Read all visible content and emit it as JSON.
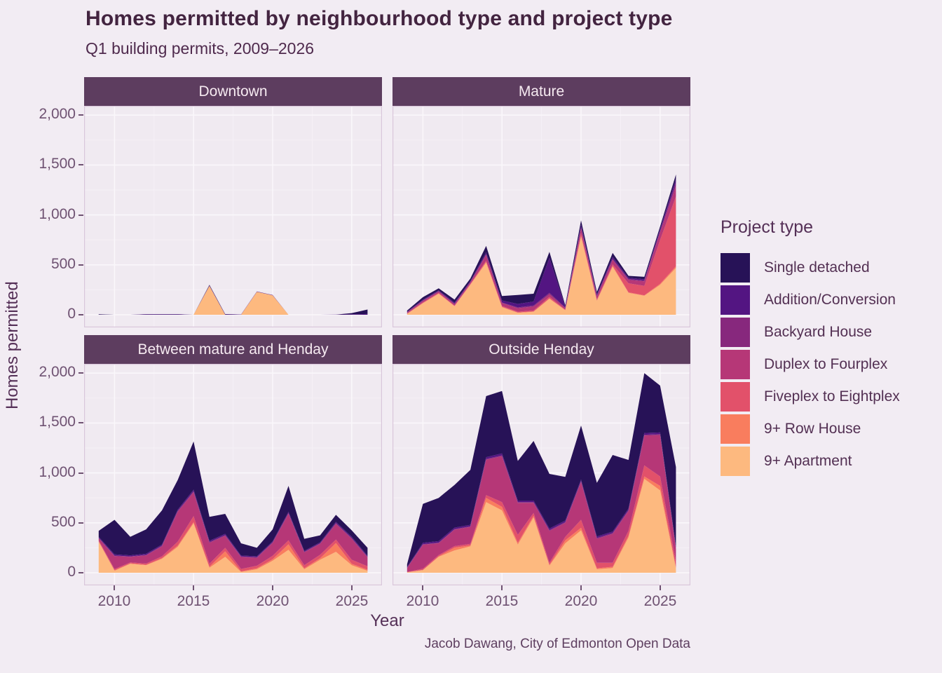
{
  "title": "Homes permitted by neighbourhood type and project type",
  "subtitle": "Q1 building permits, 2009–2026",
  "caption": "Jacob Dawang, City of Edmonton Open Data",
  "axes": {
    "x_title": "Year",
    "y_title": "Homes permitted",
    "x_tick_values": [
      2010,
      2015,
      2020,
      2025
    ],
    "x_tick_labels": [
      "2010",
      "2015",
      "2020",
      "2025"
    ],
    "y_tick_values": [
      0,
      500,
      1000,
      1500,
      2000
    ],
    "y_tick_labels": [
      "0",
      "500",
      "1,000",
      "1,500",
      "2,000"
    ]
  },
  "legend": {
    "title": "Project type",
    "items": [
      {
        "label": "Single detached",
        "color": "#271257"
      },
      {
        "label": "Addition/Conversion",
        "color": "#531582"
      },
      {
        "label": "Backyard House",
        "color": "#87287D"
      },
      {
        "label": "Duplex to Fourplex",
        "color": "#B63777"
      },
      {
        "label": "Fiveplex to Eightplex",
        "color": "#E2516A"
      },
      {
        "label": "9+ Row House",
        "color": "#F97D5E"
      },
      {
        "label": "9+ Apartment",
        "color": "#FDB97F"
      }
    ]
  },
  "theme": {
    "background": "#F2ECF3",
    "panel_background": "#F0EAF1",
    "grid_major": "#FAF7FB",
    "grid_minor": "#F6F1F7",
    "panel_border": "#D9C7DB",
    "strip_background": "#5D3D5F",
    "strip_text": "#F6EAF1",
    "title_color": "#432440",
    "subtitle_color": "#4F2A4D",
    "axis_text": "#6F5272",
    "axis_title": "#553057",
    "caption_color": "#5E3F60",
    "legend_text": "#533053"
  },
  "chart_data": {
    "type": "area",
    "stacked": true,
    "grid": true,
    "legend_position": "right",
    "x": [
      2009,
      2010,
      2011,
      2012,
      2013,
      2014,
      2015,
      2016,
      2017,
      2018,
      2019,
      2020,
      2021,
      2022,
      2023,
      2024,
      2025,
      2026
    ],
    "xlim": [
      2008.15,
      2026.85
    ],
    "ylim": [
      0,
      2000
    ],
    "stack_order_bottom_to_top": [
      "9+ Apartment",
      "9+ Row House",
      "Fiveplex to Eightplex",
      "Duplex to Fourplex",
      "Backyard House",
      "Addition/Conversion",
      "Single detached"
    ],
    "facets": [
      {
        "name": "Downtown",
        "series": {
          "Single detached": [
            4,
            0,
            0,
            2,
            2,
            2,
            0,
            5,
            3,
            0,
            0,
            0,
            0,
            0,
            0,
            0,
            12,
            45
          ],
          "Addition/Conversion": [
            2,
            0,
            0,
            4,
            4,
            4,
            0,
            5,
            4,
            3,
            3,
            3,
            0,
            0,
            0,
            2,
            5,
            8
          ],
          "Backyard House": [
            0,
            0,
            0,
            0,
            0,
            0,
            0,
            0,
            0,
            0,
            0,
            0,
            0,
            0,
            0,
            0,
            0,
            0
          ],
          "Duplex to Fourplex": [
            0,
            0,
            0,
            0,
            0,
            0,
            0,
            0,
            0,
            0,
            0,
            0,
            0,
            0,
            0,
            0,
            0,
            0
          ],
          "Fiveplex to Eightplex": [
            0,
            0,
            0,
            0,
            0,
            0,
            0,
            0,
            0,
            0,
            0,
            0,
            0,
            0,
            0,
            0,
            0,
            0
          ],
          "9+ Row House": [
            0,
            0,
            0,
            0,
            0,
            0,
            0,
            0,
            0,
            0,
            0,
            0,
            0,
            0,
            0,
            0,
            0,
            0
          ],
          "9+ Apartment": [
            0,
            0,
            0,
            0,
            0,
            0,
            0,
            290,
            0,
            0,
            230,
            195,
            0,
            0,
            0,
            0,
            0,
            0
          ]
        }
      },
      {
        "name": "Mature",
        "series": {
          "Single detached": [
            11,
            25,
            20,
            30,
            25,
            65,
            45,
            90,
            78,
            60,
            15,
            45,
            25,
            40,
            20,
            25,
            25,
            45
          ],
          "Addition/Conversion": [
            6,
            8,
            8,
            12,
            10,
            20,
            20,
            35,
            40,
            350,
            10,
            25,
            12,
            20,
            12,
            12,
            20,
            35
          ],
          "Backyard House": [
            2,
            3,
            3,
            3,
            3,
            5,
            5,
            8,
            10,
            15,
            5,
            10,
            8,
            10,
            8,
            8,
            15,
            35
          ],
          "Duplex to Fourplex": [
            10,
            16,
            15,
            15,
            15,
            60,
            30,
            35,
            40,
            25,
            15,
            50,
            30,
            45,
            35,
            45,
            75,
            105
          ],
          "Fiveplex to Eightplex": [
            3,
            5,
            5,
            4,
            5,
            10,
            8,
            8,
            10,
            15,
            5,
            20,
            10,
            15,
            90,
            95,
            440,
            700
          ],
          "9+ Row House": [
            2,
            4,
            4,
            3,
            5,
            10,
            5,
            3,
            3,
            5,
            2,
            15,
            5,
            10,
            5,
            5,
            10,
            15
          ],
          "9+ Apartment": [
            8,
            115,
            210,
            85,
            300,
            520,
            75,
            20,
            30,
            160,
            45,
            780,
            140,
            480,
            220,
            190,
            300,
            470
          ]
        }
      },
      {
        "name": "Between mature and Henday",
        "series": {
          "Single detached": [
            60,
            345,
            185,
            245,
            342,
            298,
            483,
            240,
            200,
            122,
            85,
            120,
            260,
            120,
            70,
            70,
            65,
            80
          ],
          "Addition/Conversion": [
            10,
            13,
            11,
            11,
            12,
            12,
            15,
            12,
            12,
            10,
            10,
            10,
            12,
            10,
            10,
            12,
            12,
            10
          ],
          "Backyard House": [
            4,
            5,
            4,
            5,
            5,
            8,
            10,
            8,
            8,
            5,
            5,
            5,
            8,
            5,
            5,
            8,
            8,
            5
          ],
          "Duplex to Fourplex": [
            22,
            130,
            56,
            82,
            102,
            300,
            240,
            210,
            120,
            120,
            80,
            130,
            265,
            130,
            110,
            157,
            210,
            90
          ],
          "Fiveplex to Eightplex": [
            10,
            12,
            10,
            12,
            18,
            40,
            60,
            30,
            35,
            25,
            25,
            35,
            40,
            30,
            35,
            35,
            40,
            35
          ],
          "9+ Row House": [
            4,
            5,
            4,
            5,
            6,
            12,
            12,
            10,
            55,
            5,
            10,
            15,
            55,
            10,
            15,
            88,
            15,
            10
          ],
          "9+ Apartment": [
            310,
            20,
            90,
            75,
            140,
            260,
            495,
            50,
            160,
            8,
            35,
            120,
            230,
            35,
            130,
            210,
            75,
            20
          ]
        }
      },
      {
        "name": "Outside Henday",
        "series": {
          "Single detached": [
            27,
            390,
            433,
            428,
            550,
            612,
            624,
            397,
            597,
            547,
            437,
            542,
            537,
            767,
            487,
            600,
            470,
            797
          ],
          "Addition/Conversion": [
            8,
            14,
            15,
            15,
            15,
            18,
            20,
            15,
            15,
            15,
            15,
            15,
            15,
            15,
            15,
            17,
            17,
            15
          ],
          "Backyard House": [
            2,
            5,
            5,
            5,
            5,
            8,
            8,
            8,
            8,
            8,
            8,
            8,
            8,
            8,
            8,
            8,
            8,
            8
          ],
          "Duplex to Fourplex": [
            40,
            240,
            120,
            165,
            171,
            354,
            460,
            320,
            100,
            320,
            140,
            380,
            240,
            290,
            200,
            300,
            415,
            130
          ],
          "Fiveplex to Eightplex": [
            3,
            12,
            12,
            15,
            15,
            28,
            48,
            80,
            30,
            20,
            35,
            80,
            55,
            40,
            50,
            110,
            95,
            55
          ],
          "9+ Row House": [
            1,
            4,
            5,
            28,
            10,
            42,
            35,
            17,
            16,
            9,
            30,
            25,
            10,
            13,
            16,
            25,
            45,
            10
          ],
          "9+ Apartment": [
            4,
            25,
            160,
            224,
            264,
            708,
            625,
            283,
            554,
            71,
            295,
            425,
            35,
            47,
            354,
            940,
            825,
            45
          ]
        }
      }
    ]
  }
}
